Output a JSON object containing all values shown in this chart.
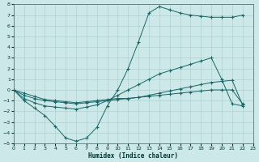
{
  "xlabel": "Humidex (Indice chaleur)",
  "bg_color": "#cce8e8",
  "grid_color": "#b0d0d0",
  "line_color": "#1a6666",
  "xlim": [
    0,
    23
  ],
  "ylim": [
    -5,
    8
  ],
  "xticks": [
    0,
    1,
    2,
    3,
    4,
    5,
    6,
    7,
    8,
    9,
    10,
    11,
    12,
    13,
    14,
    15,
    16,
    17,
    18,
    19,
    20,
    21,
    22,
    23
  ],
  "yticks": [
    -5,
    -4,
    -3,
    -2,
    -1,
    0,
    1,
    2,
    3,
    4,
    5,
    6,
    7,
    8
  ],
  "series": [
    {
      "x": [
        0,
        1,
        2,
        3,
        4,
        5,
        6,
        7,
        8,
        9,
        10,
        11,
        12,
        13,
        14,
        15,
        16,
        17,
        18,
        19,
        20,
        21,
        22
      ],
      "y": [
        0.0,
        -1.0,
        -1.7,
        -2.4,
        -3.4,
        -4.5,
        -4.8,
        -4.5,
        -3.5,
        -1.5,
        0.0,
        2.0,
        4.5,
        7.2,
        7.8,
        7.5,
        7.2,
        7.0,
        6.9,
        6.8,
        6.8,
        6.8,
        7.0
      ]
    },
    {
      "x": [
        0,
        1,
        2,
        3,
        4,
        5,
        6,
        7,
        8,
        9,
        10,
        11,
        12,
        13,
        14,
        15,
        16,
        17,
        18,
        19,
        20,
        21,
        22
      ],
      "y": [
        0.0,
        -0.8,
        -1.2,
        -1.5,
        -1.6,
        -1.7,
        -1.8,
        -1.6,
        -1.4,
        -1.0,
        -0.5,
        0.0,
        0.5,
        1.0,
        1.5,
        1.8,
        2.1,
        2.4,
        2.7,
        3.0,
        1.0,
        -1.3,
        -1.5
      ]
    },
    {
      "x": [
        0,
        1,
        2,
        3,
        4,
        5,
        6,
        7,
        8,
        9,
        10,
        11,
        12,
        13,
        14,
        15,
        16,
        17,
        18,
        19,
        20,
        21,
        22
      ],
      "y": [
        0.0,
        -0.5,
        -0.8,
        -1.0,
        -1.1,
        -1.2,
        -1.3,
        -1.2,
        -1.1,
        -1.0,
        -0.9,
        -0.8,
        -0.7,
        -0.5,
        -0.3,
        -0.1,
        0.1,
        0.3,
        0.5,
        0.7,
        0.8,
        0.9,
        -1.4
      ]
    },
    {
      "x": [
        0,
        1,
        2,
        3,
        4,
        5,
        6,
        7,
        8,
        9,
        10,
        11,
        12,
        13,
        14,
        15,
        16,
        17,
        18,
        19,
        20,
        21,
        22
      ],
      "y": [
        0.0,
        -0.3,
        -0.6,
        -0.9,
        -1.0,
        -1.1,
        -1.2,
        -1.1,
        -1.0,
        -0.9,
        -0.8,
        -0.8,
        -0.7,
        -0.6,
        -0.5,
        -0.4,
        -0.3,
        -0.2,
        -0.1,
        0.0,
        0.0,
        0.0,
        -1.3
      ]
    }
  ]
}
